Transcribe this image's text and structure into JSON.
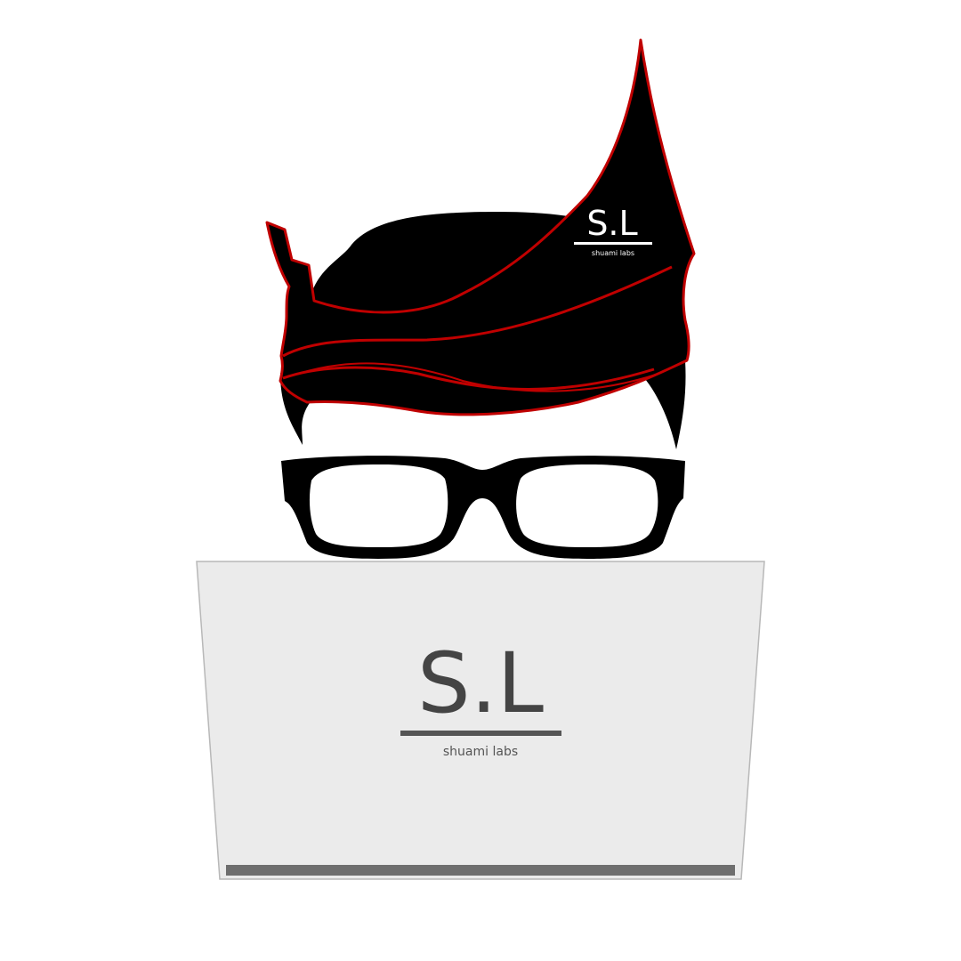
{
  "logo": {
    "monogram": "S.L",
    "tagline": "shuami labs"
  },
  "hair_logo": {
    "monogram": "S.L",
    "tagline": "shuami labs"
  },
  "colors": {
    "background": "#ffffff",
    "hair": "#000000",
    "hair_outline": "#c00000",
    "glasses": "#000000",
    "laptop_lid": "#ebebeb",
    "laptop_border": "#b8b8b8",
    "laptop_hinge": "#6e6e6e",
    "logo_text": "#444444"
  },
  "icons": [
    "hair-icon",
    "glasses-icon",
    "laptop-icon"
  ]
}
